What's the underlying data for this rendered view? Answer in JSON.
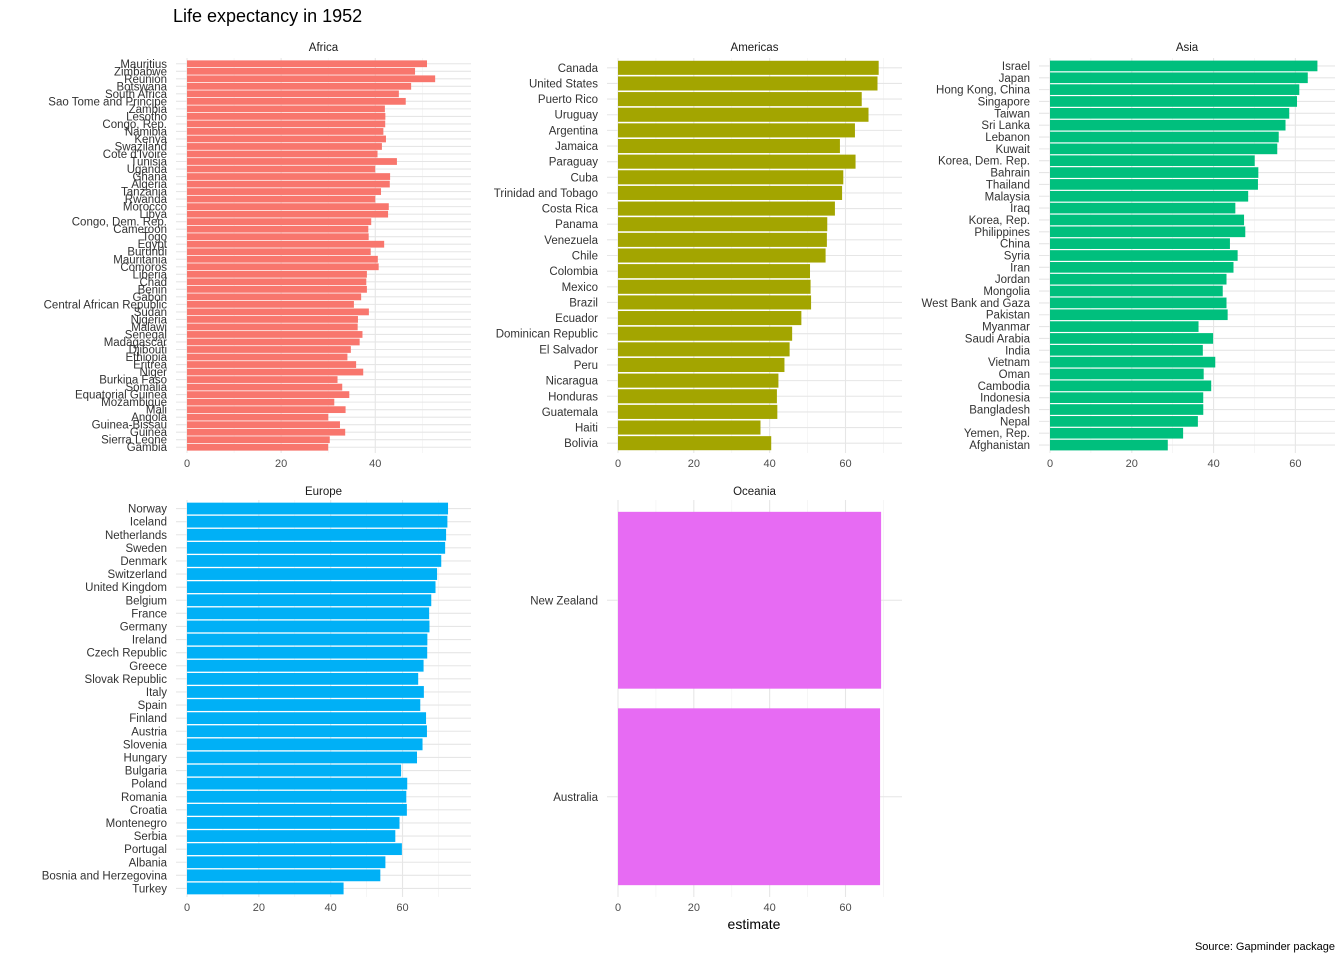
{
  "chart_data": {
    "type": "bar",
    "orientation": "horizontal",
    "title": "Life expectancy in 1952",
    "xlabel": "estimate",
    "caption": "Source: Gapminder package",
    "grid": true,
    "facets": [
      {
        "name": "Africa",
        "color": "#F8766D",
        "xlim": [
          0,
          58
        ],
        "xticks": [
          0,
          20,
          40
        ],
        "categories": [
          "Mauritius",
          "Zimbabwe",
          "Reunion",
          "Botswana",
          "South Africa",
          "Sao Tome and Principe",
          "Zambia",
          "Lesotho",
          "Congo, Rep.",
          "Namibia",
          "Kenya",
          "Swaziland",
          "Cote d'Ivoire",
          "Tunisia",
          "Uganda",
          "Ghana",
          "Algeria",
          "Tanzania",
          "Rwanda",
          "Morocco",
          "Libya",
          "Congo, Dem. Rep.",
          "Cameroon",
          "Togo",
          "Egypt",
          "Burundi",
          "Mauritania",
          "Comoros",
          "Liberia",
          "Chad",
          "Benin",
          "Gabon",
          "Central African Republic",
          "Sudan",
          "Nigeria",
          "Malawi",
          "Senegal",
          "Madagascar",
          "Djibouti",
          "Ethiopia",
          "Eritrea",
          "Niger",
          "Burkina Faso",
          "Somalia",
          "Equatorial Guinea",
          "Mozambique",
          "Mali",
          "Angola",
          "Guinea-Bissau",
          "Guinea",
          "Sierra Leone",
          "Gambia"
        ],
        "values": [
          50.99,
          48.45,
          52.72,
          47.62,
          45.01,
          46.47,
          42.04,
          42.14,
          42.11,
          41.72,
          42.27,
          41.41,
          40.48,
          44.6,
          39.98,
          43.15,
          43.08,
          41.22,
          40.0,
          42.87,
          42.72,
          39.14,
          38.52,
          38.6,
          41.89,
          39.03,
          40.54,
          40.72,
          38.22,
          38.09,
          38.22,
          37.0,
          35.46,
          38.64,
          36.32,
          36.26,
          37.28,
          36.68,
          34.81,
          34.08,
          35.93,
          37.44,
          31.98,
          32.98,
          34.48,
          31.29,
          33.69,
          30.02,
          32.5,
          33.61,
          30.33,
          30.0
        ]
      },
      {
        "name": "Americas",
        "color": "#A3A500",
        "xlim": [
          0,
          72
        ],
        "xticks": [
          0,
          20,
          40,
          60
        ],
        "categories": [
          "Canada",
          "United States",
          "Puerto Rico",
          "Uruguay",
          "Argentina",
          "Jamaica",
          "Paraguay",
          "Cuba",
          "Trinidad and Tobago",
          "Costa Rica",
          "Panama",
          "Venezuela",
          "Chile",
          "Colombia",
          "Mexico",
          "Brazil",
          "Ecuador",
          "Dominican Republic",
          "El Salvador",
          "Peru",
          "Nicaragua",
          "Honduras",
          "Guatemala",
          "Haiti",
          "Bolivia"
        ],
        "values": [
          68.75,
          68.44,
          64.28,
          66.07,
          62.49,
          58.53,
          62.65,
          59.42,
          59.1,
          57.21,
          55.19,
          55.09,
          54.75,
          50.64,
          50.79,
          50.92,
          48.36,
          45.93,
          45.26,
          43.9,
          42.31,
          41.91,
          42.02,
          37.58,
          40.41
        ]
      },
      {
        "name": "Asia",
        "color": "#00BF7D",
        "xlim": [
          0,
          67
        ],
        "xticks": [
          0,
          20,
          40,
          60
        ],
        "categories": [
          "Israel",
          "Japan",
          "Hong Kong, China",
          "Singapore",
          "Taiwan",
          "Sri Lanka",
          "Lebanon",
          "Kuwait",
          "Korea, Dem. Rep.",
          "Bahrain",
          "Thailand",
          "Malaysia",
          "Iraq",
          "Korea, Rep.",
          "Philippines",
          "China",
          "Syria",
          "Iran",
          "Jordan",
          "Mongolia",
          "West Bank and Gaza",
          "Pakistan",
          "Myanmar",
          "Saudi Arabia",
          "India",
          "Vietnam",
          "Oman",
          "Cambodia",
          "Indonesia",
          "Bangladesh",
          "Nepal",
          "Yemen, Rep.",
          "Afghanistan"
        ],
        "values": [
          65.39,
          63.03,
          60.96,
          60.4,
          58.5,
          57.59,
          55.93,
          55.57,
          50.06,
          50.94,
          50.85,
          48.46,
          45.32,
          47.45,
          47.75,
          44.0,
          45.88,
          44.87,
          43.16,
          42.24,
          43.16,
          43.44,
          36.32,
          39.88,
          37.37,
          40.41,
          37.58,
          39.42,
          37.47,
          37.48,
          36.16,
          32.55,
          28.8
        ]
      },
      {
        "name": "Europe",
        "color": "#00B0F6",
        "xlim": [
          0,
          76
        ],
        "xticks": [
          0,
          20,
          40,
          60
        ],
        "categories": [
          "Norway",
          "Iceland",
          "Netherlands",
          "Sweden",
          "Denmark",
          "Switzerland",
          "United Kingdom",
          "Belgium",
          "France",
          "Germany",
          "Ireland",
          "Czech Republic",
          "Greece",
          "Slovak Republic",
          "Italy",
          "Spain",
          "Finland",
          "Austria",
          "Slovenia",
          "Hungary",
          "Bulgaria",
          "Poland",
          "Romania",
          "Croatia",
          "Montenegro",
          "Serbia",
          "Portugal",
          "Albania",
          "Bosnia and Herzegovina",
          "Turkey"
        ],
        "values": [
          72.67,
          72.49,
          72.13,
          71.86,
          70.78,
          69.62,
          69.18,
          68.0,
          67.41,
          67.5,
          66.91,
          66.87,
          65.86,
          64.36,
          65.94,
          64.94,
          66.55,
          66.8,
          65.57,
          64.03,
          59.6,
          61.31,
          61.05,
          61.21,
          59.16,
          57.99,
          59.82,
          55.23,
          53.82,
          43.59
        ]
      },
      {
        "name": "Oceania",
        "color": "#E76BF3",
        "xlim": [
          0,
          72
        ],
        "xticks": [
          0,
          20,
          40,
          60
        ],
        "categories": [
          "New Zealand",
          "Australia"
        ],
        "values": [
          69.39,
          69.12
        ]
      }
    ]
  }
}
